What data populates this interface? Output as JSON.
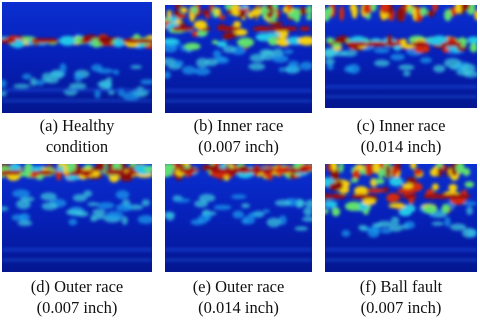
{
  "panels": [
    {
      "caption": [
        "(a) Healthy",
        "condition"
      ]
    },
    {
      "caption": [
        "(b) Inner race",
        "(0.007 inch)"
      ]
    },
    {
      "caption": [
        "(c) Inner race",
        "(0.014 inch)"
      ]
    },
    {
      "caption": [
        "(d) Outer race",
        "(0.007 inch)"
      ]
    },
    {
      "caption": [
        "(e) Outer race",
        "(0.014 inch)"
      ]
    },
    {
      "caption": [
        "(f) Ball fault",
        "(0.007 inch)"
      ]
    }
  ]
}
